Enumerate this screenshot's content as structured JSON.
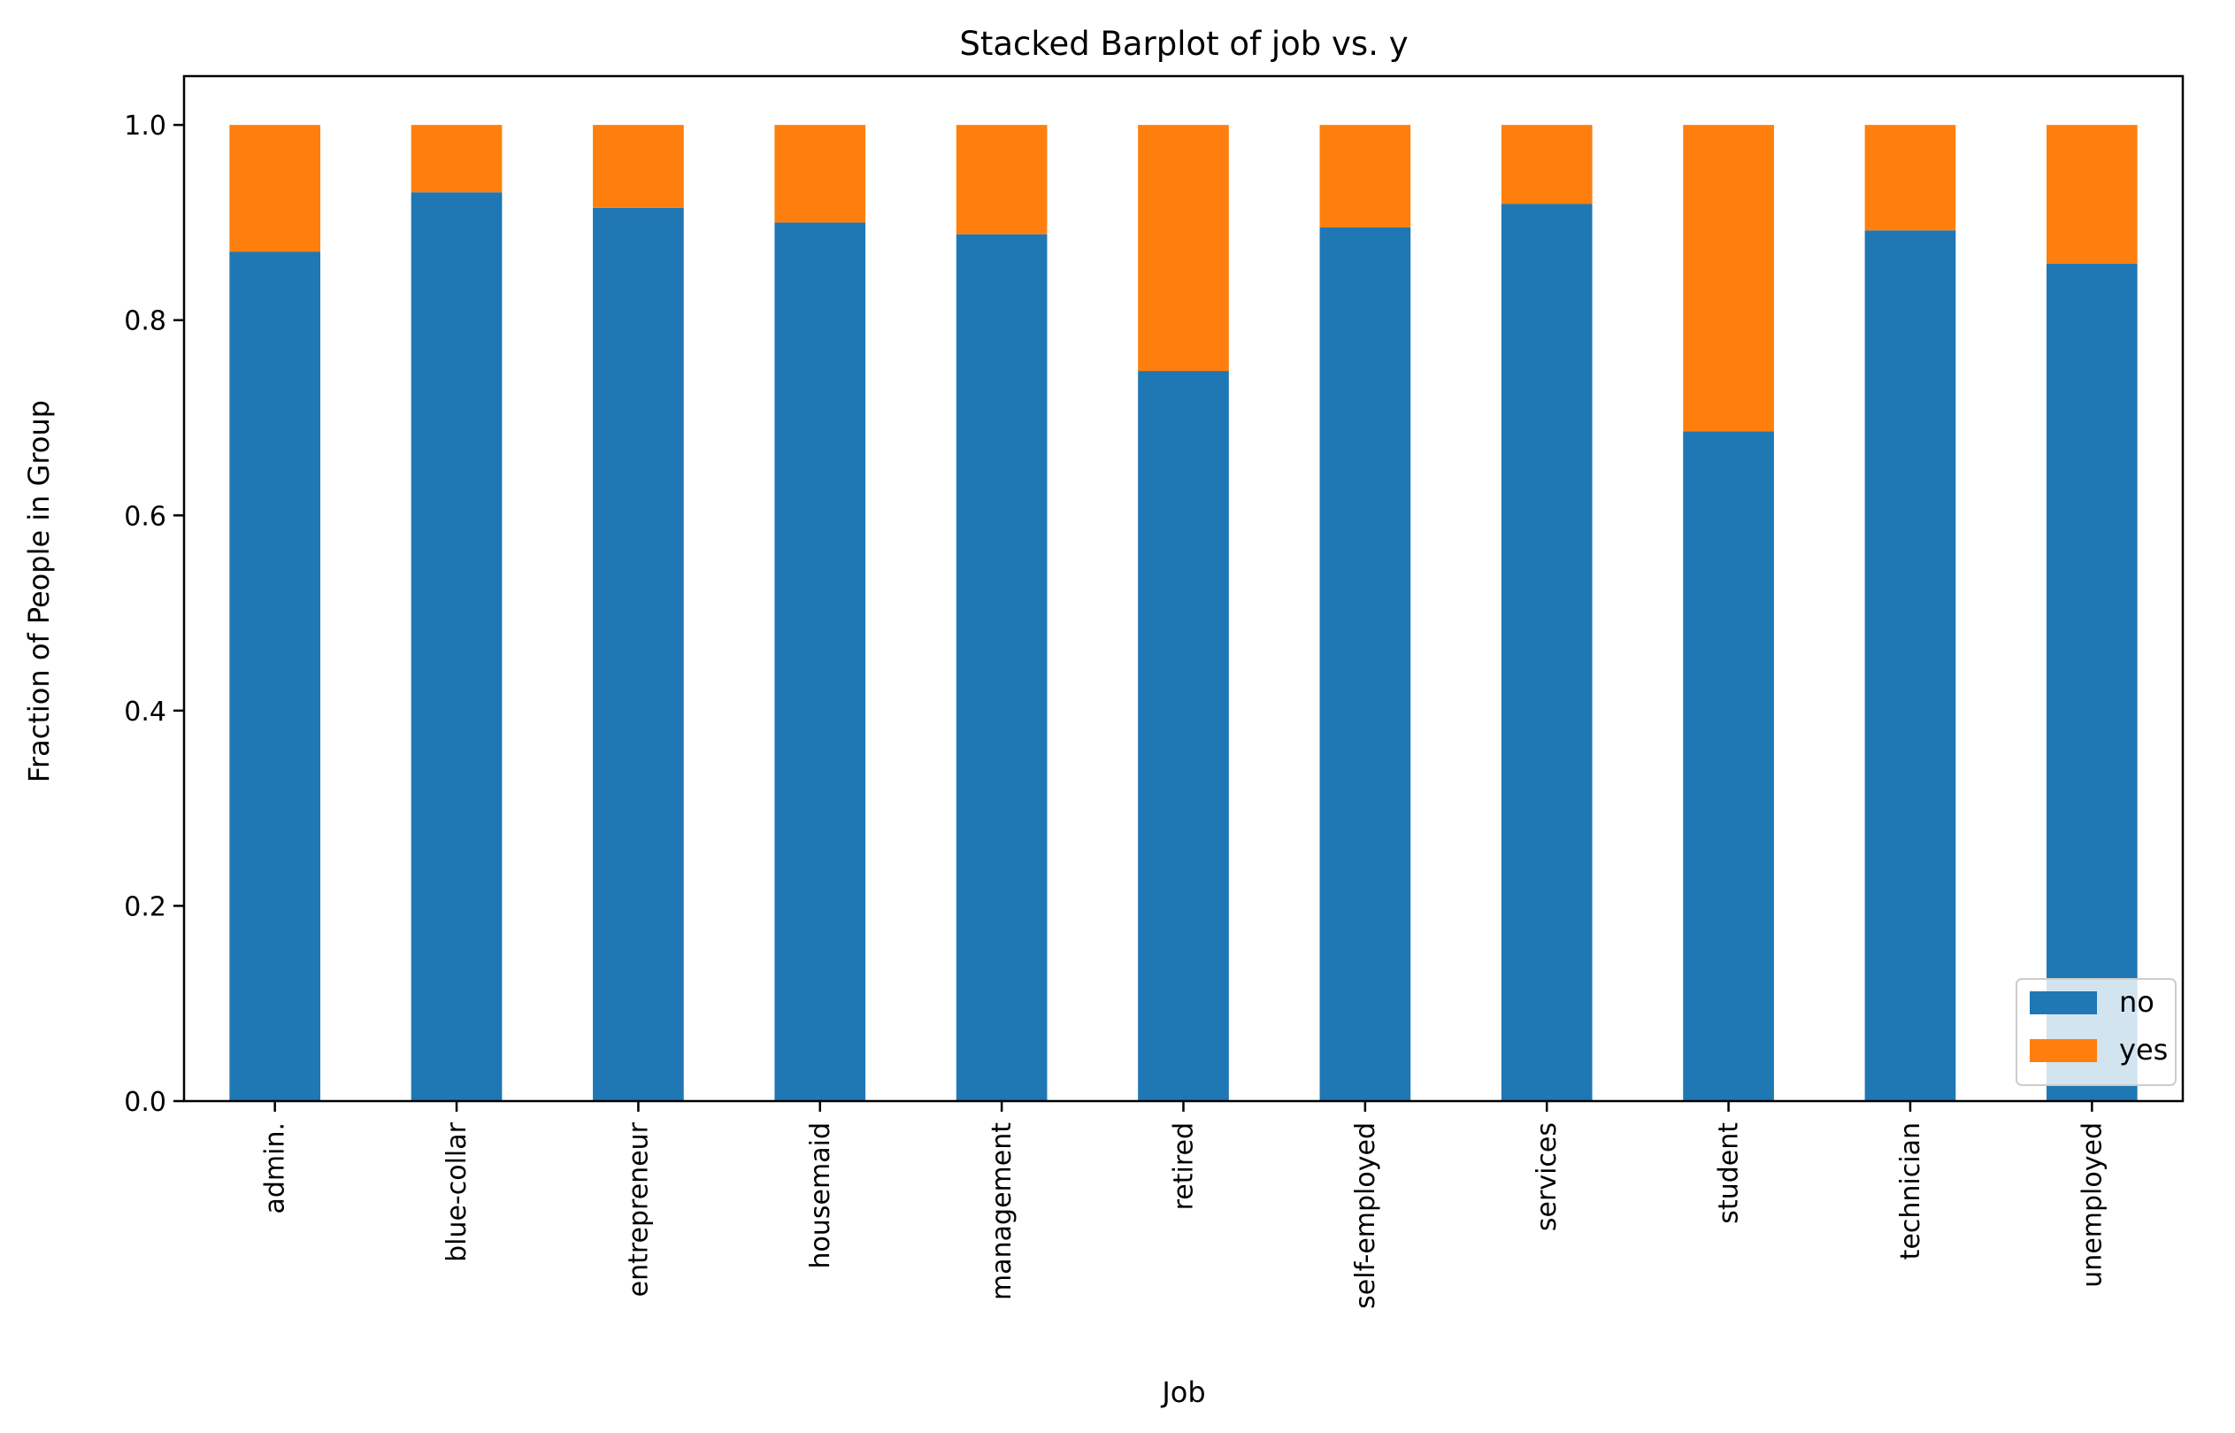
{
  "chart_data": {
    "type": "bar",
    "stacked": true,
    "title": "Stacked Barplot of job vs. y",
    "xlabel": "Job",
    "ylabel": "Fraction of People in Group",
    "ylim": [
      0,
      1.05
    ],
    "yticks": [
      "0.0",
      "0.2",
      "0.4",
      "0.6",
      "0.8",
      "1.0"
    ],
    "grid": false,
    "legend_position": "lower-right",
    "categories": [
      "admin.",
      "blue-collar",
      "entrepreneur",
      "housemaid",
      "management",
      "retired",
      "self-employed",
      "services",
      "student",
      "technician",
      "unemployed"
    ],
    "series": [
      {
        "name": "no",
        "color": "#1f77b4",
        "values": [
          0.87,
          0.931,
          0.915,
          0.9,
          0.888,
          0.748,
          0.895,
          0.919,
          0.686,
          0.892,
          0.858
        ]
      },
      {
        "name": "yes",
        "color": "#ff7f0e",
        "values": [
          0.13,
          0.069,
          0.085,
          0.1,
          0.112,
          0.252,
          0.105,
          0.081,
          0.314,
          0.108,
          0.142
        ]
      }
    ]
  }
}
